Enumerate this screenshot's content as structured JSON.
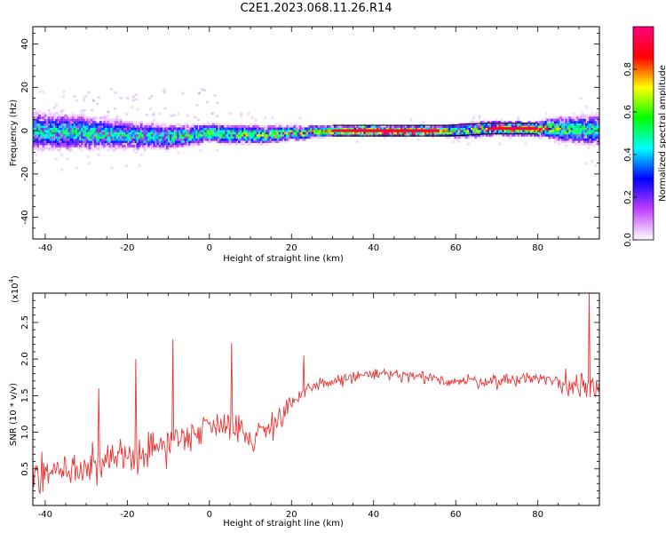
{
  "title": "C2E1.2023.068.11.26.R14",
  "chart_data": [
    {
      "type": "heatmap",
      "xlabel": "Height of straight line (km)",
      "ylabel": "Frequency (Hz)",
      "xlim": [
        -43,
        95
      ],
      "ylim": [
        -50,
        48
      ],
      "xticks": [
        -40,
        -20,
        0,
        20,
        40,
        60,
        80
      ],
      "yticks": [
        -40,
        -20,
        0,
        20,
        40
      ],
      "colorbar": {
        "label": "Normalized spectral amplitude",
        "range": [
          0,
          1
        ],
        "ticks": [
          0.0,
          0.2,
          0.4,
          0.6,
          0.8
        ],
        "colormap": "rainbow",
        "colors": [
          "#ffffff",
          "#c040ff",
          "#0000ff",
          "#00ffff",
          "#00ff00",
          "#ffff00",
          "#ff0000",
          "#ff0080"
        ]
      },
      "band": [
        {
          "x": -43,
          "center": 0,
          "halfwidth": 8,
          "peak": 0.45
        },
        {
          "x": -30,
          "center": -1,
          "halfwidth": 7,
          "peak": 0.5
        },
        {
          "x": -20,
          "center": -2,
          "halfwidth": 6,
          "peak": 0.45
        },
        {
          "x": -10,
          "center": -3,
          "halfwidth": 5,
          "peak": 0.5
        },
        {
          "x": 0,
          "center": -1,
          "halfwidth": 4,
          "peak": 0.55
        },
        {
          "x": 10,
          "center": -2,
          "halfwidth": 4,
          "peak": 0.6
        },
        {
          "x": 20,
          "center": -1,
          "halfwidth": 3,
          "peak": 0.65
        },
        {
          "x": 30,
          "center": 0,
          "halfwidth": 2,
          "peak": 0.8
        },
        {
          "x": 40,
          "center": 0,
          "halfwidth": 2,
          "peak": 1.0
        },
        {
          "x": 56,
          "center": 0,
          "halfwidth": 2,
          "peak": 0.95
        },
        {
          "x": 60,
          "center": 0,
          "halfwidth": 3,
          "peak": 0.6
        },
        {
          "x": 68,
          "center": 1,
          "halfwidth": 3,
          "peak": 0.8
        },
        {
          "x": 80,
          "center": 1,
          "halfwidth": 3,
          "peak": 0.85
        },
        {
          "x": 85,
          "center": 1,
          "halfwidth": 5,
          "peak": 0.6
        },
        {
          "x": 95,
          "center": 0,
          "halfwidth": 7,
          "peak": 0.45
        }
      ]
    },
    {
      "type": "line",
      "xlabel": "Height of straight line (km)",
      "ylabel": "SNR (10 * v/v)",
      "multiplier": "(x10",
      "multiplier_exp": "4",
      "multiplier_close": ")",
      "xlim": [
        -43,
        95
      ],
      "ylim": [
        0,
        2.9
      ],
      "xticks": [
        -40,
        -20,
        0,
        20,
        40,
        60,
        80
      ],
      "yticks": [
        0.5,
        1.0,
        1.5,
        2.0,
        2.5
      ],
      "ytick_labels": [
        "0.5",
        "1.0",
        "1.5",
        "2.0",
        "2.5"
      ],
      "color": "#ee3333",
      "trend": [
        {
          "x": -43,
          "y": 0.45
        },
        {
          "x": -30,
          "y": 0.5
        },
        {
          "x": -20,
          "y": 0.65
        },
        {
          "x": -10,
          "y": 0.85
        },
        {
          "x": 0,
          "y": 1.1
        },
        {
          "x": 5,
          "y": 1.15
        },
        {
          "x": 10,
          "y": 0.9
        },
        {
          "x": 15,
          "y": 1.1
        },
        {
          "x": 20,
          "y": 1.4
        },
        {
          "x": 25,
          "y": 1.6
        },
        {
          "x": 30,
          "y": 1.7
        },
        {
          "x": 40,
          "y": 1.8
        },
        {
          "x": 50,
          "y": 1.75
        },
        {
          "x": 60,
          "y": 1.7
        },
        {
          "x": 70,
          "y": 1.7
        },
        {
          "x": 80,
          "y": 1.75
        },
        {
          "x": 88,
          "y": 1.65
        },
        {
          "x": 95,
          "y": 1.7
        }
      ],
      "spikes": [
        {
          "x": -27,
          "y": 1.6
        },
        {
          "x": -18,
          "y": 2.0
        },
        {
          "x": -9,
          "y": 2.27
        },
        {
          "x": 5.5,
          "y": 2.22
        },
        {
          "x": 23,
          "y": 2.05
        },
        {
          "x": 92.5,
          "y": 2.9
        }
      ]
    }
  ]
}
